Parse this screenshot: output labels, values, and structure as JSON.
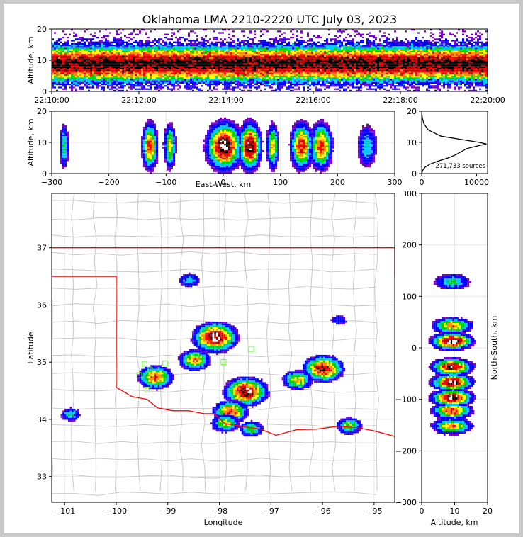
{
  "title": "Oklahoma LMA 2210-2220 UTC July 03, 2023",
  "panels": {
    "time_height": {
      "ylabel": "Altitude, km",
      "yticks": [
        "0",
        "10",
        "20"
      ],
      "xticks": [
        "22:10:00",
        "22:12:00",
        "22:14:00",
        "22:16:00",
        "22:18:00",
        "22:20:00"
      ]
    },
    "ew_altitude": {
      "ylabel": "Altitude, km",
      "xlabel": "East-West, km",
      "yticks": [
        "0",
        "10",
        "20"
      ],
      "xticks": [
        "−300",
        "−200",
        "−100",
        "0",
        "100",
        "200",
        "300"
      ]
    },
    "histogram": {
      "yticks": [
        "0",
        "10",
        "20"
      ],
      "xticks": [
        "0",
        "10000"
      ],
      "annotation": "271,733 sources"
    },
    "plan_view": {
      "ylabel": "Latitude",
      "xlabel": "Longitude",
      "yticks": [
        "33",
        "34",
        "35",
        "36",
        "37"
      ],
      "xticks": [
        "−101",
        "−100",
        "−99",
        "−98",
        "−97",
        "−96",
        "−95"
      ]
    },
    "ns_altitude": {
      "ylabel": "North-South, km",
      "xlabel": "Altitude, km",
      "yticks": [
        "300",
        "200",
        "100",
        "0",
        "−100",
        "−200",
        "−300"
      ],
      "xticks": [
        "0",
        "10",
        "20"
      ]
    }
  },
  "colors": {
    "density_scale": [
      "#7a00c8",
      "#0000ff",
      "#00c8ff",
      "#00d200",
      "#ffff00",
      "#ff8c00",
      "#ff0000",
      "#c80000",
      "#000000",
      "#ffffff"
    ],
    "state_border": "#ff0000",
    "county_lines": "#c8c8c8",
    "stations": "#66ff33"
  },
  "chart_data": [
    {
      "type": "heatmap",
      "description_axis": "time vs altitude",
      "xlabel": "",
      "ylabel": "Altitude, km",
      "xlim": [
        "22:10:00",
        "22:20:00"
      ],
      "ylim": [
        0,
        20
      ],
      "peak_altitude_km": 9
    },
    {
      "type": "heatmap",
      "xlabel": "East-West, km",
      "ylabel": "Altitude, km",
      "xlim": [
        -300,
        300
      ],
      "ylim": [
        0,
        20
      ],
      "clusters_ew_km": [
        -280,
        -130,
        -95,
        0,
        45,
        85,
        135,
        170,
        250
      ]
    },
    {
      "type": "line",
      "xlim": [
        0,
        12000
      ],
      "ylim": [
        0,
        20
      ],
      "x": [
        0,
        200,
        600,
        1500,
        3000,
        4800,
        6200,
        8200,
        10500,
        11800,
        10500,
        7000,
        3500,
        1200,
        400,
        100,
        0
      ],
      "y": [
        0,
        1,
        2,
        3,
        4,
        5,
        6,
        8,
        9,
        9.5,
        10,
        11,
        12,
        14,
        16,
        18,
        20
      ],
      "total_sources": 271733
    },
    {
      "type": "scatter",
      "xlabel": "Longitude",
      "ylabel": "Latitude",
      "xlim": [
        -101.25,
        -94.6
      ],
      "ylim": [
        32.55,
        37.95
      ],
      "density_centers": [
        {
          "lon": -98.1,
          "lat": 35.45,
          "intensity": 1.0
        },
        {
          "lon": -97.5,
          "lat": 34.5,
          "intensity": 0.95
        },
        {
          "lon": -96.0,
          "lat": 34.9,
          "intensity": 0.85
        },
        {
          "lon": -99.25,
          "lat": 34.75,
          "intensity": 0.7
        },
        {
          "lon": -97.8,
          "lat": 34.15,
          "intensity": 0.7
        },
        {
          "lon": -98.5,
          "lat": 35.05,
          "intensity": 0.6
        },
        {
          "lon": -97.9,
          "lat": 33.95,
          "intensity": 0.5
        },
        {
          "lon": -96.5,
          "lat": 34.7,
          "intensity": 0.55
        },
        {
          "lon": -97.4,
          "lat": 33.85,
          "intensity": 0.4
        },
        {
          "lon": -95.5,
          "lat": 33.9,
          "intensity": 0.45
        },
        {
          "lon": -98.6,
          "lat": 36.45,
          "intensity": 0.3
        },
        {
          "lon": -100.9,
          "lat": 34.1,
          "intensity": 0.3
        },
        {
          "lon": -95.7,
          "lat": 35.75,
          "intensity": 0.2
        }
      ],
      "stations": [
        {
          "lon": -99.45,
          "lat": 34.97
        },
        {
          "lon": -99.55,
          "lat": 34.77
        },
        {
          "lon": -99.4,
          "lat": 34.52
        },
        {
          "lon": -99.35,
          "lat": 34.87
        },
        {
          "lon": -99.05,
          "lat": 34.98
        },
        {
          "lon": -97.92,
          "lat": 35.0
        },
        {
          "lon": -97.38,
          "lat": 35.23
        },
        {
          "lon": -98.45,
          "lat": 35.12
        }
      ]
    },
    {
      "type": "heatmap",
      "xlabel": "Altitude, km",
      "ylabel": "North-South, km",
      "xlim": [
        0,
        20
      ],
      "ylim": [
        -300,
        300
      ],
      "clusters_ns_km": [
        130,
        45,
        15,
        -35,
        -65,
        -95,
        -120,
        -150
      ]
    }
  ]
}
